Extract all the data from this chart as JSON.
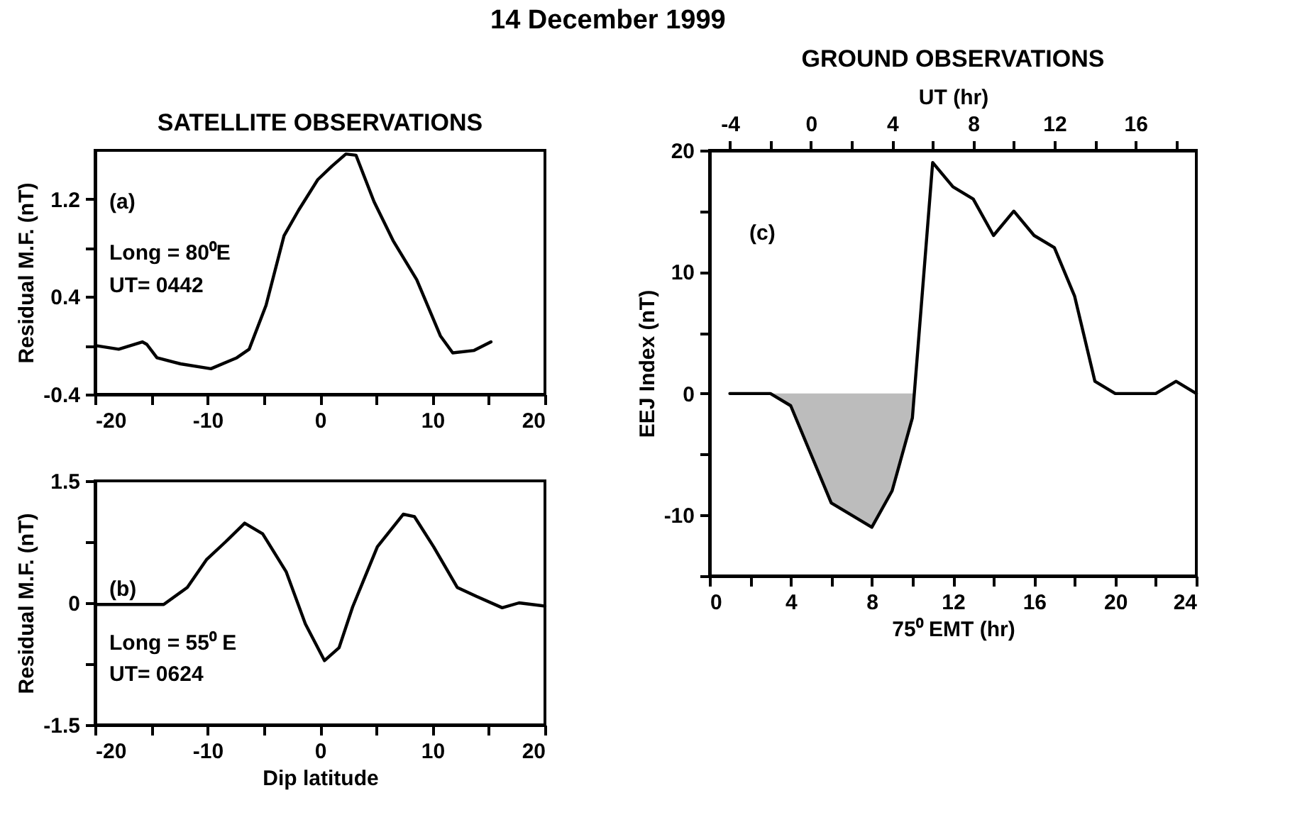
{
  "chart_data": [
    {
      "type": "line",
      "title": "14 December 1999",
      "subtitle": "SATELLITE OBSERVATIONS",
      "ylabel": "Residual M.F. (nT)",
      "xlim": [
        -20,
        20
      ],
      "xticks": [
        -20,
        {
          "value": -15,
          "label": null
        },
        -10,
        {
          "value": -5,
          "label": null
        },
        0,
        {
          "value": 5,
          "label": null
        },
        10,
        {
          "value": 15,
          "label": null
        },
        20
      ],
      "ylim": [
        -0.4,
        1.6
      ],
      "yticks": [
        -0.4,
        {
          "value": 0,
          "label": null
        },
        0.4,
        {
          "value": 0.8,
          "label": null
        },
        1.2
      ],
      "annotations": [
        "(a)",
        "Long = 80⁰E",
        "UT= 0442"
      ],
      "series": [
        {
          "color": "#000000",
          "x": [
            -20,
            -17.9,
            -15.8,
            -15.4,
            -14.5,
            -12.4,
            -9.7,
            -7.4,
            -6.3,
            -4.8,
            -3.2,
            -1.9,
            -0.2,
            1.05,
            2.3,
            3.2,
            4.8,
            6.5,
            8.6,
            10.7,
            11.8,
            13.7,
            15.2
          ],
          "values": [
            0.0,
            -0.03,
            0.03,
            0.01,
            -0.1,
            -0.15,
            -0.19,
            -0.1,
            -0.03,
            0.33,
            0.9,
            1.11,
            1.36,
            1.47,
            1.57,
            1.56,
            1.18,
            0.86,
            0.54,
            0.08,
            -0.06,
            -0.04,
            0.03
          ]
        }
      ]
    },
    {
      "type": "line",
      "xlabel": "Dip latitude",
      "ylabel": "Residual M.F. (nT)",
      "xlim": [
        -20,
        20
      ],
      "xticks": [
        -20,
        {
          "value": -15,
          "label": null
        },
        -10,
        {
          "value": -5,
          "label": null
        },
        0,
        {
          "value": 5,
          "label": null
        },
        10,
        {
          "value": 15,
          "label": null
        },
        20
      ],
      "ylim": [
        -1.5,
        1.5
      ],
      "yticks": [
        -1.5,
        {
          "value": -0.75,
          "label": null
        },
        0,
        {
          "value": 0.75,
          "label": null
        },
        1.5
      ],
      "annotations": [
        "(b)",
        "Long = 55⁰ E",
        "UT= 0624"
      ],
      "series": [
        {
          "color": "#000000",
          "x": [
            -20,
            -13.9,
            -11.8,
            -10.1,
            -8.4,
            -6.7,
            -5.1,
            -3.0,
            -1.3,
            0.4,
            1.7,
            2.9,
            5.1,
            7.4,
            8.4,
            10.1,
            12.2,
            13.9,
            16.2,
            17.7,
            20
          ],
          "values": [
            -0.02,
            -0.02,
            0.19,
            0.53,
            0.75,
            0.98,
            0.85,
            0.38,
            -0.26,
            -0.71,
            -0.55,
            -0.05,
            0.69,
            1.09,
            1.06,
            0.69,
            0.19,
            0.08,
            -0.06,
            0.0,
            -0.04
          ]
        }
      ]
    },
    {
      "type": "line",
      "title": "GROUND OBSERVATIONS",
      "xlabel": "75⁰ EMT (hr)",
      "ylabel": "EEJ Index (nT)",
      "x2label": "UT (hr)",
      "xlim": [
        0,
        24
      ],
      "xticks": [
        0,
        {
          "value": 2,
          "label": null
        },
        4,
        {
          "value": 6,
          "label": null
        },
        8,
        {
          "value": 10,
          "label": null
        },
        12,
        {
          "value": 14,
          "label": null
        },
        16,
        {
          "value": 18,
          "label": null
        },
        20,
        {
          "value": 22,
          "label": null
        },
        24
      ],
      "x2lim": [
        -5,
        19
      ],
      "x2ticks": [
        -4,
        {
          "value": -2,
          "label": null
        },
        0,
        {
          "value": 2,
          "label": null
        },
        4,
        {
          "value": 6,
          "label": null
        },
        8,
        {
          "value": 10,
          "label": null
        },
        12,
        {
          "value": 14,
          "label": null
        },
        16,
        {
          "value": 18,
          "label": null
        }
      ],
      "ylim": [
        -15,
        20
      ],
      "yticks": [
        {
          "value": -15,
          "label": null
        },
        -10,
        {
          "value": -5,
          "label": null
        },
        0,
        {
          "value": 5,
          "label": null
        },
        10,
        {
          "value": 15,
          "label": null
        },
        20
      ],
      "annotations": [
        "(c)"
      ],
      "series": [
        {
          "type": "area",
          "color": "#a0a0a0",
          "x": [
            3,
            4,
            6,
            8,
            9,
            10,
            10.1
          ],
          "values": [
            0,
            -1,
            -9,
            -11,
            -8,
            -2,
            0
          ]
        },
        {
          "type": "line",
          "color": "#000000",
          "x": [
            1,
            3,
            4,
            6,
            8,
            9,
            10,
            11,
            12,
            13,
            14,
            15,
            16,
            17,
            18,
            19,
            20,
            22,
            23,
            24
          ],
          "values": [
            0,
            0,
            -1,
            -9,
            -11,
            -8,
            -2,
            19,
            17,
            16,
            13,
            15,
            13,
            12,
            8,
            1,
            0,
            0,
            1,
            0
          ]
        }
      ]
    }
  ]
}
